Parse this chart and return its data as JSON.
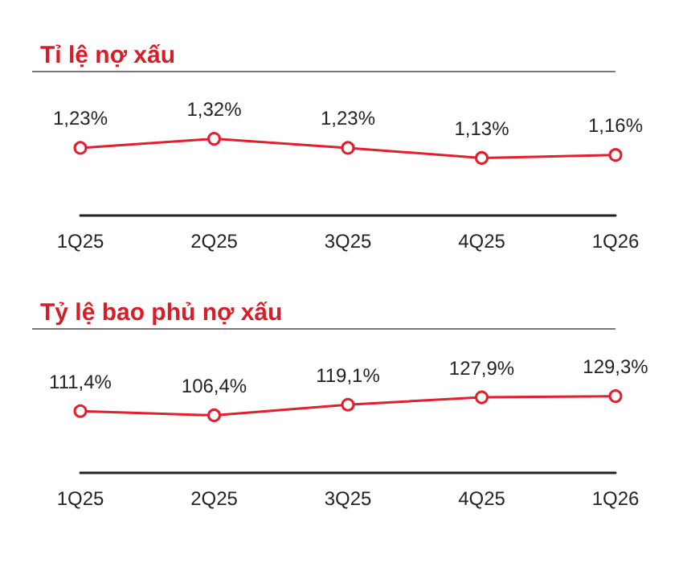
{
  "chart_data": [
    {
      "type": "line",
      "title": "Tỉ lệ nợ xấu",
      "categories": [
        "1Q25",
        "2Q25",
        "3Q25",
        "4Q25",
        "1Q26"
      ],
      "series": [
        {
          "color": "#e0202e",
          "values": [
            1.23,
            1.32,
            1.23,
            1.13,
            1.16
          ],
          "value_labels": [
            "1,23%",
            "1,32%",
            "1,23%",
            "1,13%",
            "1,16%"
          ]
        }
      ],
      "marker": "circle",
      "line_style": "solid"
    },
    {
      "type": "line",
      "title": "Tỷ lệ bao phủ nợ xấu",
      "categories": [
        "1Q25",
        "2Q25",
        "3Q25",
        "4Q25",
        "1Q26"
      ],
      "series": [
        {
          "color": "#e0202e",
          "values": [
            111.4,
            106.4,
            119.1,
            127.9,
            129.3
          ],
          "value_labels": [
            "111,4%",
            "106,4%",
            "119,1%",
            "127,9%",
            "129,3%"
          ]
        }
      ],
      "marker": "circle",
      "line_style": "solid"
    }
  ]
}
